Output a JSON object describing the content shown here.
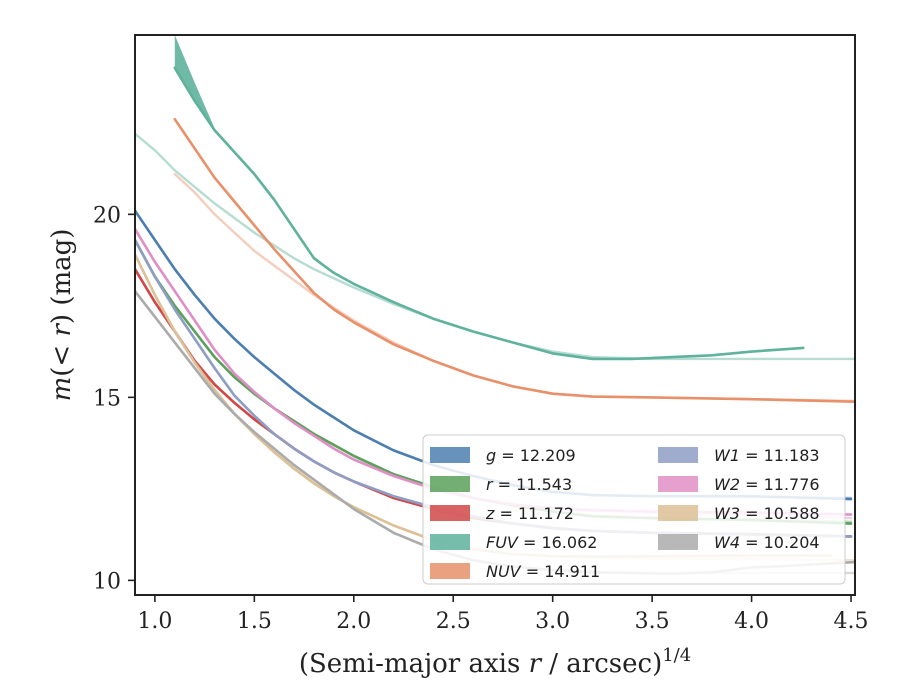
{
  "chart_data": {
    "type": "line",
    "title": "",
    "xlabel": {
      "prefix": "(Semi-major axis ",
      "var": "r",
      "suffix": " / arcsec)",
      "exponent": "1/4"
    },
    "ylabel": {
      "func": "m",
      "open": "(< ",
      "var": "r",
      "close": ") (mag)"
    },
    "xlim": [
      0.9,
      4.52
    ],
    "ylim": [
      24.9,
      9.6
    ],
    "y_inverted": true,
    "xticks": [
      1.0,
      1.5,
      2.0,
      2.5,
      3.0,
      3.5,
      4.0,
      4.5
    ],
    "xtick_labels": [
      "1.0",
      "1.5",
      "2.0",
      "2.5",
      "3.0",
      "3.5",
      "4.0",
      "4.5"
    ],
    "yticks": [
      10,
      15,
      20
    ],
    "ytick_labels": [
      "10",
      "15",
      "20"
    ],
    "grid": false,
    "legend": {
      "placement": "lower-right",
      "columns": 2
    },
    "series": [
      {
        "name": "g",
        "label_value": "= 12.209",
        "color": "#4c7fb0",
        "x": [
          0.9,
          1.0,
          1.1,
          1.2,
          1.3,
          1.4,
          1.5,
          1.6,
          1.7,
          1.8,
          1.9,
          2.0,
          2.2,
          2.4,
          2.6,
          2.8,
          3.0,
          3.2,
          3.5,
          4.0,
          4.5
        ],
        "y": [
          20.1,
          19.3,
          18.5,
          17.8,
          17.15,
          16.6,
          16.1,
          15.65,
          15.2,
          14.8,
          14.45,
          14.1,
          13.55,
          13.15,
          12.85,
          12.6,
          12.42,
          12.33,
          12.3,
          12.3,
          12.22
        ],
        "model_y": [
          20.1,
          19.3,
          18.5,
          17.8,
          17.15,
          16.6,
          16.1,
          15.65,
          15.2,
          14.8,
          14.45,
          14.1,
          13.55,
          13.15,
          12.85,
          12.6,
          12.42,
          12.33,
          12.3,
          12.28,
          12.25
        ]
      },
      {
        "name": "r",
        "label_value": "= 11.543",
        "color": "#5ba05b",
        "x": [
          0.9,
          1.0,
          1.1,
          1.2,
          1.3,
          1.4,
          1.5,
          1.6,
          1.7,
          1.8,
          1.9,
          2.0,
          2.2,
          2.4,
          2.6,
          2.8,
          3.0,
          3.2,
          3.5,
          4.0,
          4.5
        ],
        "y": [
          19.3,
          18.3,
          17.5,
          16.8,
          16.1,
          15.55,
          15.1,
          14.7,
          14.35,
          14.0,
          13.7,
          13.4,
          12.9,
          12.55,
          12.25,
          12.05,
          11.88,
          11.75,
          11.7,
          11.65,
          11.55
        ],
        "model_y": [
          19.3,
          18.3,
          17.5,
          16.8,
          16.1,
          15.55,
          15.1,
          14.7,
          14.35,
          14.0,
          13.7,
          13.4,
          12.9,
          12.55,
          12.25,
          12.05,
          11.88,
          11.75,
          11.7,
          11.65,
          11.6
        ]
      },
      {
        "name": "z",
        "label_value": "= 11.172",
        "color": "#d04848",
        "x": [
          0.9,
          1.0,
          1.1,
          1.2,
          1.3,
          1.4,
          1.5,
          1.6,
          1.7,
          1.8,
          1.9,
          2.0,
          2.2,
          2.4,
          2.6,
          2.8,
          3.0,
          3.2,
          3.5,
          4.0,
          4.5
        ],
        "y": [
          18.5,
          17.6,
          16.8,
          16.0,
          15.35,
          14.85,
          14.4,
          14.0,
          13.6,
          13.25,
          12.95,
          12.7,
          12.25,
          11.95,
          11.7,
          11.55,
          11.43,
          11.35,
          11.3,
          11.26,
          11.2
        ],
        "model_y": [
          18.5,
          17.6,
          16.8,
          16.0,
          15.35,
          14.85,
          14.4,
          14.0,
          13.6,
          13.25,
          12.95,
          12.7,
          12.25,
          11.95,
          11.7,
          11.55,
          11.43,
          11.35,
          11.3,
          11.25,
          11.2
        ]
      },
      {
        "name": "FUV",
        "label_value": "= 16.062",
        "color": "#5fb29c",
        "x": [
          1.1,
          1.2,
          1.3,
          1.4,
          1.5,
          1.6,
          1.7,
          1.8,
          1.9,
          2.0,
          2.2,
          2.4,
          2.6,
          2.8,
          3.0,
          3.2,
          3.4,
          3.6,
          3.8,
          4.0,
          4.26
        ],
        "y": [
          24.0,
          23.1,
          22.3,
          21.7,
          21.1,
          20.4,
          19.6,
          18.8,
          18.4,
          18.1,
          17.6,
          17.15,
          16.8,
          16.5,
          16.2,
          16.05,
          16.05,
          16.1,
          16.15,
          16.25,
          16.35
        ],
        "y_low": [
          24.9,
          23.6,
          22.35,
          21.75,
          21.15,
          20.45,
          19.65,
          18.85,
          18.42,
          18.12,
          17.62,
          17.17,
          16.82,
          16.52,
          16.22,
          16.07,
          16.07,
          16.12,
          16.17,
          16.27,
          16.37
        ],
        "model_x": [
          0.9,
          1.0,
          1.1,
          1.2,
          1.3,
          1.4,
          1.5,
          1.6,
          1.7,
          1.8,
          1.9,
          2.0,
          2.2,
          2.4,
          2.6,
          2.8,
          3.0,
          3.2,
          3.5,
          4.0,
          4.52
        ],
        "model_y": [
          22.2,
          21.75,
          21.2,
          20.75,
          20.3,
          19.9,
          19.5,
          19.15,
          18.8,
          18.5,
          18.25,
          18.0,
          17.55,
          17.15,
          16.8,
          16.5,
          16.25,
          16.1,
          16.05,
          16.05,
          16.05
        ]
      },
      {
        "name": "NUV",
        "label_value": "= 14.911",
        "color": "#e8906a",
        "x": [
          1.1,
          1.2,
          1.3,
          1.4,
          1.5,
          1.6,
          1.7,
          1.8,
          1.9,
          2.0,
          2.2,
          2.4,
          2.6,
          2.8,
          3.0,
          3.2,
          3.5,
          4.0,
          4.52
        ],
        "y": [
          22.6,
          21.8,
          21.0,
          20.35,
          19.7,
          19.05,
          18.45,
          17.85,
          17.4,
          17.05,
          16.45,
          16.0,
          15.6,
          15.3,
          15.1,
          15.02,
          15.0,
          14.95,
          14.88
        ],
        "model_x": [
          1.1,
          1.2,
          1.3,
          1.4,
          1.5,
          1.6,
          1.7,
          1.8,
          1.9,
          2.0,
          2.2,
          2.4,
          2.6,
          2.8,
          3.0,
          3.2,
          3.5,
          4.0,
          4.52
        ],
        "model_y": [
          21.1,
          20.6,
          20.0,
          19.5,
          19.0,
          18.6,
          18.2,
          17.8,
          17.45,
          17.1,
          16.5,
          16.0,
          15.6,
          15.3,
          15.1,
          15.02,
          15.0,
          14.95,
          14.9
        ]
      },
      {
        "name": "W1",
        "label_value": "= 11.183",
        "color": "#8e9dc4",
        "x": [
          0.9,
          1.0,
          1.1,
          1.2,
          1.3,
          1.4,
          1.5,
          1.6,
          1.7,
          1.8,
          1.9,
          2.0,
          2.2,
          2.4,
          2.6,
          2.8,
          3.0,
          3.2,
          3.5,
          4.0,
          4.5
        ],
        "y": [
          19.3,
          18.3,
          17.4,
          16.6,
          15.8,
          15.05,
          14.5,
          14.0,
          13.6,
          13.25,
          12.95,
          12.7,
          12.3,
          12.0,
          11.75,
          11.55,
          11.42,
          11.35,
          11.3,
          11.25,
          11.2
        ],
        "model_y": [
          19.3,
          18.3,
          17.4,
          16.6,
          15.8,
          15.05,
          14.5,
          14.0,
          13.6,
          13.25,
          12.95,
          12.7,
          12.3,
          12.0,
          11.75,
          11.55,
          11.42,
          11.35,
          11.3,
          11.25,
          11.2
        ]
      },
      {
        "name": "W2",
        "label_value": "= 11.776",
        "color": "#e08fc6",
        "x": [
          0.9,
          1.0,
          1.1,
          1.2,
          1.3,
          1.4,
          1.5,
          1.6,
          1.7,
          1.8,
          1.9,
          2.0,
          2.2,
          2.4,
          2.6,
          2.8,
          3.0,
          3.2,
          3.5,
          4.0,
          4.5
        ],
        "y": [
          19.6,
          18.7,
          17.9,
          17.1,
          16.3,
          15.65,
          15.15,
          14.7,
          14.3,
          13.95,
          13.6,
          13.3,
          12.85,
          12.5,
          12.25,
          12.07,
          11.97,
          11.92,
          11.88,
          11.85,
          11.8
        ],
        "model_y": [
          19.6,
          18.7,
          17.9,
          17.1,
          16.3,
          15.65,
          15.15,
          14.7,
          14.3,
          13.95,
          13.6,
          13.3,
          12.85,
          12.5,
          12.25,
          12.07,
          11.97,
          11.9,
          11.85,
          11.78,
          11.7
        ]
      },
      {
        "name": "W3",
        "label_value": "= 10.588",
        "color": "#dcc096",
        "x": [
          0.9,
          1.0,
          1.1,
          1.2,
          1.3,
          1.4,
          1.5,
          1.6,
          1.7,
          1.8,
          1.9,
          2.0,
          2.2,
          2.4,
          2.6,
          2.8,
          3.0,
          3.2,
          3.5,
          4.0,
          4.4
        ],
        "y": [
          18.9,
          17.8,
          16.8,
          15.95,
          15.2,
          14.55,
          14.0,
          13.5,
          13.05,
          12.65,
          12.3,
          12.0,
          11.5,
          11.1,
          10.85,
          10.72,
          10.66,
          10.65,
          10.66,
          10.68,
          10.68
        ],
        "model_x": [
          0.9,
          1.0,
          1.1,
          1.2,
          1.3,
          1.4,
          1.5,
          1.6,
          1.7,
          1.8,
          1.9,
          2.0,
          2.2,
          2.4,
          2.6,
          2.8,
          3.0,
          3.2,
          3.5,
          4.0,
          4.52
        ],
        "model_y": [
          18.9,
          17.8,
          16.8,
          15.95,
          15.2,
          14.55,
          14.0,
          13.5,
          13.05,
          12.65,
          12.3,
          12.0,
          11.5,
          11.1,
          10.85,
          10.72,
          10.66,
          10.62,
          10.6,
          10.58,
          10.55
        ]
      },
      {
        "name": "W4",
        "label_value": "= 10.204",
        "color": "#ababab",
        "x": [
          0.9,
          1.0,
          1.1,
          1.2,
          1.3,
          1.4,
          1.5,
          1.6,
          1.7,
          1.8,
          1.9,
          2.0,
          2.2,
          2.4,
          2.6,
          2.8,
          3.0,
          3.2,
          3.4,
          3.6,
          3.8,
          4.0,
          4.2,
          4.52
        ],
        "y": [
          17.9,
          17.2,
          16.5,
          15.8,
          15.1,
          14.55,
          14.05,
          13.6,
          13.15,
          12.75,
          12.35,
          11.95,
          11.3,
          10.85,
          10.55,
          10.38,
          10.28,
          10.22,
          10.2,
          10.18,
          10.22,
          10.35,
          10.4,
          10.5
        ],
        "model_x": [
          0.9,
          1.0,
          1.1,
          1.2,
          1.3,
          1.4,
          1.5,
          1.6,
          1.7,
          1.8,
          1.9,
          2.0,
          2.2,
          2.4,
          2.6,
          2.8,
          3.0,
          3.2,
          3.5,
          4.0,
          4.52
        ],
        "model_y": [
          17.9,
          17.2,
          16.5,
          15.8,
          15.1,
          14.55,
          14.05,
          13.6,
          13.15,
          12.75,
          12.35,
          11.95,
          11.3,
          10.85,
          10.55,
          10.38,
          10.28,
          10.22,
          10.2,
          10.2,
          10.2
        ]
      }
    ]
  }
}
